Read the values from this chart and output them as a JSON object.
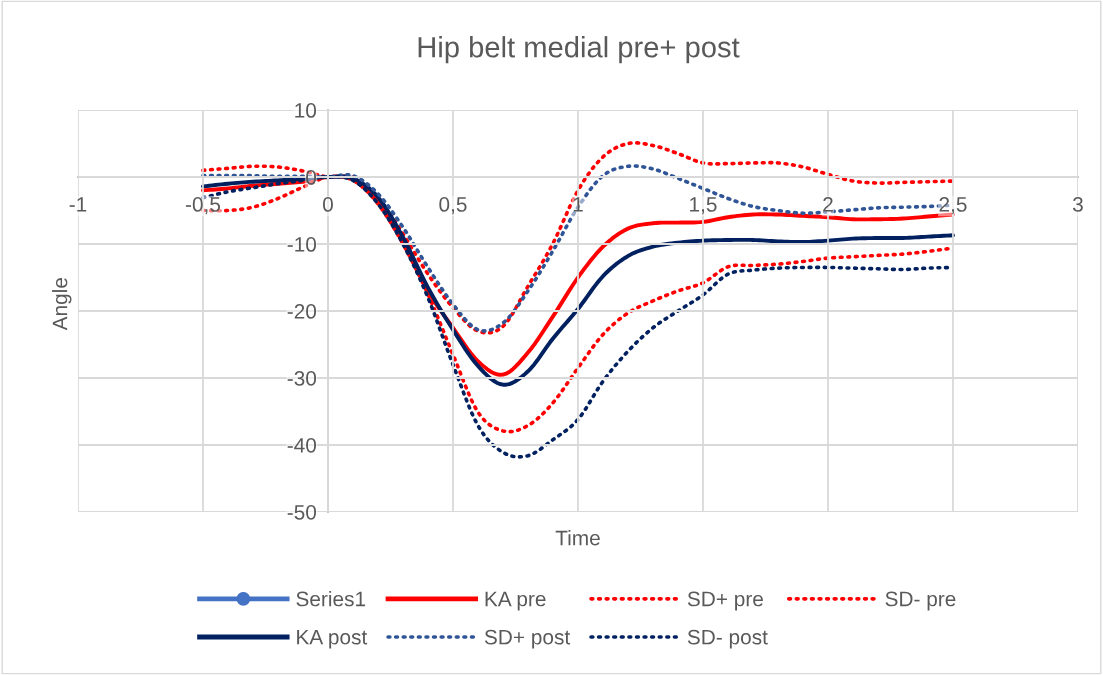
{
  "chart_data": {
    "type": "line",
    "title": "Hip belt medial pre+ post",
    "xlabel": "Time",
    "ylabel": "Angle",
    "x": [
      -0.5,
      -0.4,
      -0.3,
      -0.2,
      -0.1,
      0,
      0.1,
      0.2,
      0.3,
      0.4,
      0.5,
      0.6,
      0.7,
      0.8,
      0.9,
      1.0,
      1.1,
      1.2,
      1.3,
      1.4,
      1.5,
      1.6,
      1.7,
      1.8,
      1.9,
      2.0,
      2.1,
      2.2,
      2.3,
      2.4,
      2.5
    ],
    "xlim": [
      -1,
      3
    ],
    "xticks": [
      -1,
      {
        "value": -0.5,
        "label": "-0,5"
      },
      0,
      {
        "value": 0.5,
        "label": "0,5"
      },
      1,
      {
        "value": 1.5,
        "label": "1,5"
      },
      2,
      {
        "value": 2.5,
        "label": "2,5"
      },
      3
    ],
    "ylim": [
      -50,
      10
    ],
    "yticks": [
      -50,
      -40,
      -30,
      -20,
      -10,
      0,
      10
    ],
    "grid": true,
    "legend": "bottom",
    "series": [
      {
        "name": "Series1",
        "color": "#4472c4",
        "marker": "circle",
        "line_style": "solid",
        "values": [
          null,
          null,
          null,
          null,
          null,
          null,
          null,
          null,
          null,
          null,
          null,
          null,
          null,
          null,
          null,
          null,
          null,
          null,
          null,
          null,
          null,
          null,
          null,
          null,
          null,
          null,
          null,
          null,
          null,
          null,
          null
        ]
      },
      {
        "name": "KA pre",
        "color": "#ff0000",
        "marker": "none",
        "line_style": "solid",
        "values": [
          -2.0,
          -1.7,
          -1.3,
          -1.0,
          -0.7,
          0,
          -0.3,
          -3.5,
          -9.5,
          -17,
          -22.5,
          -27.5,
          -29.5,
          -26.2,
          -20.8,
          -15,
          -10.4,
          -7.7,
          -6.9,
          -6.8,
          -6.7,
          -6.0,
          -5.6,
          -5.6,
          -5.8,
          -6.0,
          -6.3,
          -6.3,
          -6.2,
          -5.9,
          -5.6
        ]
      },
      {
        "name": "SD+ pre",
        "color": "#ff0000",
        "marker": "none",
        "line_style": "dotted",
        "values": [
          1.0,
          1.3,
          1.6,
          1.5,
          0.9,
          0,
          0,
          -3,
          -8.5,
          -14.5,
          -19.5,
          -23.0,
          -22.3,
          -16.3,
          -9.9,
          -2,
          3.0,
          5.0,
          4.7,
          3.5,
          2.1,
          2.0,
          2.1,
          2.1,
          1.5,
          0.4,
          -0.6,
          -0.9,
          -0.8,
          -0.7,
          -0.6
        ]
      },
      {
        "name": "SD- pre",
        "color": "#ff0000",
        "marker": "none",
        "line_style": "dotted",
        "values": [
          -5.0,
          -5.0,
          -4.5,
          -3.2,
          -1.5,
          0,
          -0.5,
          -4,
          -10,
          -17.5,
          -26.5,
          -35.1,
          -37.9,
          -37.1,
          -33.7,
          -28.5,
          -23.5,
          -20.3,
          -18.5,
          -17,
          -15.8,
          -13.4,
          -13.2,
          -13.0,
          -12.6,
          -12.1,
          -11.9,
          -11.7,
          -11.5,
          -11.1,
          -10.6
        ]
      },
      {
        "name": "KA post",
        "color": "#002060",
        "marker": "none",
        "line_style": "solid",
        "values": [
          -1.4,
          -1.0,
          -0.7,
          -0.5,
          -0.3,
          0,
          -0.2,
          -3,
          -9,
          -16.5,
          -22.8,
          -28.2,
          -31,
          -29,
          -24.1,
          -19.7,
          -14.8,
          -11.8,
          -10.4,
          -9.8,
          -9.5,
          -9.4,
          -9.4,
          -9.6,
          -9.7,
          -9.5,
          -9.2,
          -9.1,
          -9.1,
          -8.9,
          -8.7
        ]
      },
      {
        "name": "SD+ post",
        "color": "#2f5597",
        "marker": "none",
        "line_style": "dotted",
        "values": [
          0.2,
          0.2,
          0.2,
          0.1,
          0.1,
          0,
          0.2,
          -2.5,
          -7.5,
          -13.5,
          -19,
          -22.8,
          -21.8,
          -17,
          -11,
          -4.5,
          0.2,
          1.6,
          1.2,
          -0.2,
          -1.7,
          -3.2,
          -4.4,
          -5.0,
          -5.4,
          -5.2,
          -4.9,
          -4.6,
          -4.5,
          -4.4,
          -4.2
        ]
      },
      {
        "name": "SD- post",
        "color": "#002060",
        "marker": "none",
        "line_style": "dotted",
        "values": [
          -3.1,
          -2.2,
          -1.6,
          -1.0,
          -0.5,
          0,
          -0.5,
          -4,
          -10,
          -18,
          -28,
          -37.1,
          -41.1,
          -41.6,
          -39.2,
          -36.2,
          -30.5,
          -26,
          -22.5,
          -20,
          -17.6,
          -14.5,
          -13.9,
          -13.6,
          -13.5,
          -13.5,
          -13.6,
          -13.7,
          -13.8,
          -13.6,
          -13.5
        ]
      }
    ]
  }
}
